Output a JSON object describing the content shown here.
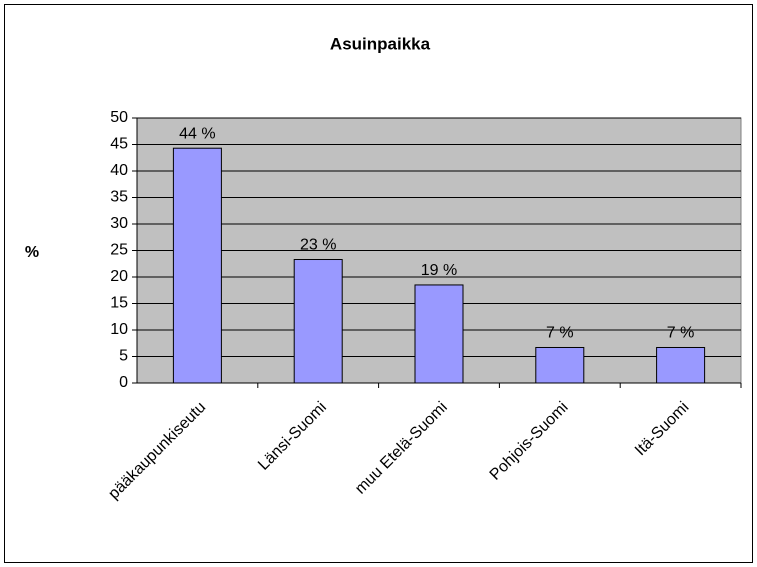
{
  "chart_data": {
    "type": "bar",
    "title": "Asuinpaikka",
    "y_label": "%",
    "categories": [
      "pääkaupunkiseutu",
      "Länsi-Suomi",
      "muu Etelä-Suomi",
      "Pohjois-Suomi",
      "Itä-Suomi"
    ],
    "values": [
      44.3,
      23.3,
      18.5,
      6.7,
      6.7
    ],
    "value_labels": [
      "44 %",
      "23 %",
      "19 %",
      "7 %",
      "7 %"
    ],
    "color": "#9999ff",
    "ylim": [
      0,
      50
    ],
    "yticks": [
      0,
      5,
      10,
      15,
      20,
      25,
      30,
      35,
      40,
      45,
      50
    ],
    "grid": true
  }
}
